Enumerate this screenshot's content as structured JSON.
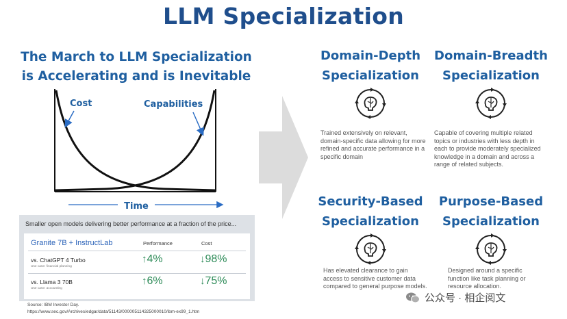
{
  "title": "LLM Specialization",
  "left": {
    "subtitle_line1": "The March to LLM Specialization",
    "subtitle_line2": "is Accelerating and is Inevitable",
    "chart": {
      "cost_label": "Cost",
      "capabilities_label": "Capabilities",
      "axis_label": "Time"
    },
    "panel": {
      "heading": "Smaller open models delivering better performance at a fraction of the price...",
      "table_title": "Granite 7B + InstructLab",
      "col_performance": "Performance",
      "col_cost": "Cost",
      "rows": [
        {
          "model": "vs. ChatGPT 4 Turbo",
          "use_case": "Use case: financial planning",
          "perf_arrow": "↑",
          "performance": "4%",
          "cost_arrow": "↓",
          "cost": "98%"
        },
        {
          "model": "vs. Llama 3 70B",
          "use_case": "Use case: accounting",
          "perf_arrow": "↑",
          "performance": "6%",
          "cost_arrow": "↓",
          "cost": "75%"
        }
      ]
    },
    "source_line1": "Source:  IBM Investor Day.",
    "source_line2": "https://www.sec.gov/Archives/edgar/data/51143/000005114325000010/ibm-ex99_1.htm"
  },
  "specializations": [
    {
      "title_line1": "Domain-Depth",
      "title_line2": "Specialization",
      "description": "Trained extensively on relevant, domain-specific data allowing for more refined and accurate performance in a specific domain",
      "icon": "brain-cycle-icon"
    },
    {
      "title_line1": "Domain-Breadth",
      "title_line2": "Specialization",
      "description": "Capable of covering multiple related topics or industries with less depth in each to provide moderately specialized knowledge in a domain and across a range of related subjects.",
      "icon": "brain-cycle-icon"
    },
    {
      "title_line1": "Security-Based",
      "title_line2": "Specialization",
      "description": "Has elevated clearance to gain access to sensitive customer data compared to general purpose models.",
      "icon": "brain-cycle-icon"
    },
    {
      "title_line1": "Purpose-Based",
      "title_line2": "Specialization",
      "description": "Designed around a specific function like task planning or resource allocation.",
      "icon": "brain-cycle-icon"
    }
  ],
  "watermark": "公众号 · 相企阅文",
  "colors": {
    "title": "#1f4e8c",
    "heading": "#1f5fa0",
    "performance_up": "#2c8a57",
    "table_title": "#2a62b8",
    "arrow_gray": "#dcdcdc"
  }
}
